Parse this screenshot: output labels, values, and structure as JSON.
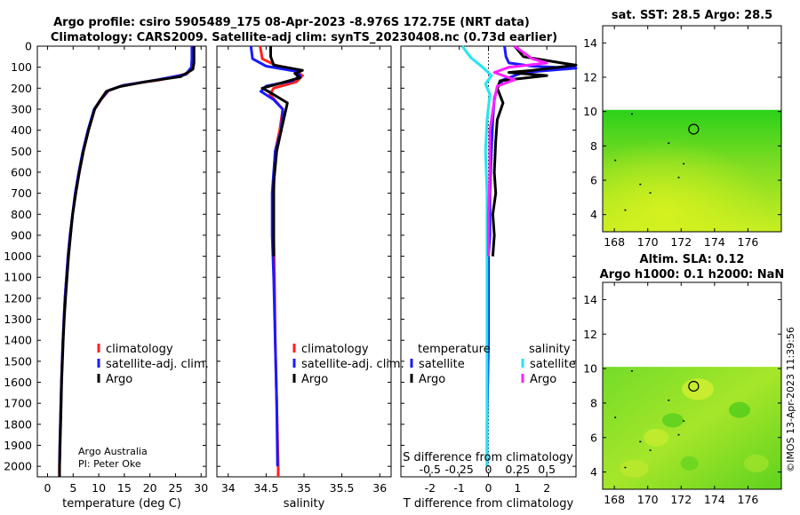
{
  "header": {
    "title_line1": "Argo profile: csiro 5905489_175 08-Apr-2023 -8.976S 172.75E (NRT data)",
    "title_line2": "Climatology: CARS2009. Satellite-adj clim: synTS_20230408.nc (0.73d earlier)"
  },
  "credit": {
    "line1": "Argo Australia",
    "line2": "PI: Peter Oke"
  },
  "stamp": "©IMOS 13-Apr-2023 11:39:56",
  "colors": {
    "climatology": "#ff2020",
    "satellite": "#1a1aff",
    "argo": "#000000",
    "sat_salinity": "#22e6f0",
    "argo_salinity": "#ff20ff"
  },
  "legend": {
    "climatology": "climatology",
    "satellite_adj": "satellite-adj. clim.",
    "argo": "Argo",
    "temperature": "temperature",
    "salinity": "salinity",
    "satellite": "satellite",
    "argo_short": "Argo",
    "s_diff": "S difference from climatology",
    "s_diff_ticks": [
      "-0.5",
      "-0.25",
      "0",
      "0.25",
      "0.5"
    ]
  },
  "chart_data": [
    {
      "type": "line",
      "id": "temperature",
      "xlabel": "temperature (deg C)",
      "xlim": [
        -2,
        31
      ],
      "ylim": [
        2050,
        0
      ],
      "x_ticks": [
        0,
        5,
        10,
        15,
        20,
        25,
        30
      ],
      "y_ticks": [
        0,
        100,
        200,
        300,
        400,
        500,
        600,
        700,
        800,
        900,
        1000,
        1100,
        1200,
        1300,
        1400,
        1500,
        1600,
        1700,
        1800,
        1900,
        2000
      ],
      "series": [
        {
          "name": "climatology",
          "points": [
            [
              28.4,
              0
            ],
            [
              28.4,
              60
            ],
            [
              28.3,
              100
            ],
            [
              27.3,
              130
            ],
            [
              22,
              160
            ],
            [
              15,
              185
            ],
            [
              12,
              210
            ],
            [
              10.6,
              250
            ],
            [
              9.2,
              300
            ],
            [
              8,
              400
            ],
            [
              7,
              500
            ],
            [
              6.2,
              600
            ],
            [
              5.5,
              700
            ],
            [
              4.9,
              800
            ],
            [
              4.4,
              900
            ],
            [
              4,
              1000
            ],
            [
              3.7,
              1100
            ],
            [
              3.4,
              1200
            ],
            [
              3.2,
              1300
            ],
            [
              3.0,
              1400
            ],
            [
              2.85,
              1500
            ],
            [
              2.7,
              1600
            ],
            [
              2.6,
              1700
            ],
            [
              2.5,
              1800
            ],
            [
              2.4,
              1900
            ],
            [
              2.3,
              2000
            ],
            [
              2.3,
              2050
            ]
          ]
        },
        {
          "name": "satellite-adj. clim.",
          "points": [
            [
              28.2,
              0
            ],
            [
              28.2,
              60
            ],
            [
              28.1,
              100
            ],
            [
              27,
              135
            ],
            [
              21,
              162
            ],
            [
              14.5,
              188
            ],
            [
              11.8,
              212
            ],
            [
              10.5,
              250
            ],
            [
              9.1,
              300
            ],
            [
              7.9,
              400
            ],
            [
              6.9,
              500
            ],
            [
              6.1,
              600
            ],
            [
              5.4,
              700
            ],
            [
              4.9,
              800
            ],
            [
              4.4,
              900
            ],
            [
              4,
              1000
            ],
            [
              3.7,
              1100
            ],
            [
              3.4,
              1200
            ],
            [
              3.2,
              1300
            ],
            [
              3.0,
              1400
            ],
            [
              2.85,
              1500
            ],
            [
              2.7,
              1600
            ],
            [
              2.6,
              1700
            ],
            [
              2.5,
              1800
            ],
            [
              2.4,
              1900
            ],
            [
              2.35,
              2000
            ]
          ]
        },
        {
          "name": "Argo",
          "points": [
            [
              28.6,
              0
            ],
            [
              28.6,
              80
            ],
            [
              28.4,
              110
            ],
            [
              26,
              145
            ],
            [
              19,
              170
            ],
            [
              14,
              193
            ],
            [
              11.5,
              215
            ],
            [
              10.5,
              250
            ],
            [
              9.2,
              300
            ],
            [
              8,
              400
            ],
            [
              7,
              500
            ],
            [
              6.2,
              600
            ],
            [
              5.5,
              700
            ],
            [
              4.9,
              800
            ],
            [
              4.5,
              900
            ],
            [
              4.1,
              1000
            ],
            [
              3.8,
              1100
            ],
            [
              3.5,
              1200
            ],
            [
              3.25,
              1300
            ],
            [
              3.05,
              1400
            ],
            [
              2.9,
              1500
            ],
            [
              2.75,
              1600
            ],
            [
              2.65,
              1700
            ],
            [
              2.55,
              1800
            ],
            [
              2.45,
              1900
            ],
            [
              2.35,
              2000
            ],
            [
              2.35,
              2050
            ]
          ]
        }
      ],
      "legend": [
        "climatology",
        "satellite-adj. clim.",
        "Argo"
      ]
    },
    {
      "type": "line",
      "id": "salinity",
      "xlabel": "salinity",
      "xlim": [
        33.85,
        36.15
      ],
      "ylim": [
        2050,
        0
      ],
      "x_ticks": [
        34,
        34.5,
        35,
        35.5,
        36
      ],
      "series": [
        {
          "name": "climatology",
          "points": [
            [
              34.42,
              0
            ],
            [
              34.45,
              60
            ],
            [
              34.62,
              90
            ],
            [
              34.85,
              110
            ],
            [
              34.98,
              140
            ],
            [
              34.9,
              170
            ],
            [
              34.6,
              200
            ],
            [
              34.55,
              230
            ],
            [
              34.72,
              300
            ],
            [
              34.68,
              400
            ],
            [
              34.62,
              500
            ],
            [
              34.6,
              700
            ],
            [
              34.6,
              900
            ],
            [
              34.61,
              1100
            ],
            [
              34.62,
              1400
            ],
            [
              34.64,
              1700
            ],
            [
              34.66,
              2000
            ],
            [
              34.66,
              2050
            ]
          ]
        },
        {
          "name": "satellite-adj. clim.",
          "points": [
            [
              34.3,
              0
            ],
            [
              34.32,
              60
            ],
            [
              34.5,
              95
            ],
            [
              34.9,
              120
            ],
            [
              34.95,
              140
            ],
            [
              34.85,
              165
            ],
            [
              34.5,
              190
            ],
            [
              34.43,
              215
            ],
            [
              34.6,
              255
            ],
            [
              34.72,
              300
            ],
            [
              34.7,
              400
            ],
            [
              34.62,
              500
            ],
            [
              34.58,
              700
            ],
            [
              34.58,
              900
            ],
            [
              34.6,
              1100
            ],
            [
              34.62,
              1400
            ],
            [
              34.64,
              1700
            ],
            [
              34.65,
              2000
            ]
          ]
        },
        {
          "name": "Argo",
          "points": [
            [
              34.56,
              0
            ],
            [
              34.56,
              50
            ],
            [
              34.6,
              90
            ],
            [
              34.98,
              115
            ],
            [
              34.88,
              130
            ],
            [
              34.95,
              150
            ],
            [
              34.7,
              175
            ],
            [
              34.45,
              200
            ],
            [
              34.55,
              220
            ],
            [
              34.78,
              270
            ],
            [
              34.75,
              320
            ],
            [
              34.7,
              400
            ],
            [
              34.64,
              500
            ],
            [
              34.6,
              650
            ],
            [
              34.6,
              800
            ],
            [
              34.6,
              1000
            ]
          ]
        }
      ],
      "legend": [
        "climatology",
        "satellite-adj. clim.",
        "Argo"
      ]
    },
    {
      "type": "line",
      "id": "difference",
      "xlabel": "T difference from climatology",
      "xlim": [
        -3,
        3
      ],
      "ylim": [
        2050,
        0
      ],
      "x_ticks": [
        -2,
        -1,
        0,
        1,
        2
      ],
      "s_scale_note": "S difference axis: -0.5..0.5 maps to x -2..2",
      "series": [
        {
          "name": "temperature satellite",
          "points": [
            [
              0.55,
              0
            ],
            [
              0.6,
              50
            ],
            [
              0.7,
              80
            ],
            [
              1.5,
              95
            ],
            [
              3,
              105
            ],
            [
              1.2,
              125
            ],
            [
              0.5,
              160
            ],
            [
              0.3,
              200
            ],
            [
              0.2,
              250
            ],
            [
              0.15,
              350
            ],
            [
              0.1,
              500
            ],
            [
              0.05,
              700
            ],
            [
              0.05,
              900
            ],
            [
              0.0,
              1000
            ],
            [
              0.0,
              1400
            ],
            [
              -0.05,
              1800
            ],
            [
              -0.05,
              2000
            ]
          ]
        },
        {
          "name": "temperature Argo",
          "points": [
            [
              0.9,
              0
            ],
            [
              1.2,
              50
            ],
            [
              2.5,
              80
            ],
            [
              3,
              90
            ],
            [
              2.4,
              100
            ],
            [
              1.5,
              115
            ],
            [
              0.7,
              125
            ],
            [
              2,
              140
            ],
            [
              0.4,
              165
            ],
            [
              0.3,
              200
            ],
            [
              0.5,
              270
            ],
            [
              0.3,
              350
            ],
            [
              0.25,
              450
            ],
            [
              0.2,
              600
            ],
            [
              0.25,
              700
            ],
            [
              0.15,
              800
            ],
            [
              0.2,
              900
            ],
            [
              0.15,
              1000
            ]
          ]
        },
        {
          "name": "salinity satellite",
          "points": [
            [
              -0.9,
              0
            ],
            [
              -0.6,
              55
            ],
            [
              -0.2,
              100
            ],
            [
              0.1,
              140
            ],
            [
              -0.1,
              180
            ],
            [
              0.05,
              230
            ],
            [
              -0.05,
              350
            ],
            [
              -0.1,
              500
            ],
            [
              -0.05,
              700
            ],
            [
              -0.05,
              1000
            ],
            [
              -0.05,
              1300
            ],
            [
              -0.05,
              1700
            ],
            [
              -0.05,
              2000
            ]
          ]
        },
        {
          "name": "salinity Argo",
          "points": [
            [
              0.9,
              0
            ],
            [
              1.5,
              60
            ],
            [
              2,
              80
            ],
            [
              0.7,
              100
            ],
            [
              0.2,
              125
            ],
            [
              0.9,
              160
            ],
            [
              0.3,
              190
            ],
            [
              0.2,
              260
            ],
            [
              0.05,
              400
            ],
            [
              0.05,
              600
            ],
            [
              0.0,
              800
            ],
            [
              0.0,
              1000
            ]
          ]
        }
      ],
      "legend_temperature": [
        "satellite",
        "Argo"
      ],
      "legend_salinity": [
        "satellite",
        "Argo"
      ]
    },
    {
      "type": "heatmap",
      "id": "sst_map",
      "title": "sat. SST: 28.5 Argo: 28.5",
      "xlim": [
        167.3,
        178
      ],
      "ylim": [
        3,
        15
      ],
      "x_ticks": [
        168,
        170,
        172,
        174,
        176
      ],
      "y_ticks": [
        4,
        6,
        8,
        10,
        12,
        14
      ],
      "data_extent": {
        "lon": [
          167.3,
          178
        ],
        "lat": [
          3,
          10.1
        ]
      },
      "argo_location": [
        172.75,
        8.976
      ]
    },
    {
      "type": "heatmap",
      "id": "sla_map",
      "title_line1": "Altim. SLA: 0.12",
      "title_line2": "Argo h1000: 0.1 h2000: NaN",
      "xlim": [
        167.3,
        178
      ],
      "ylim": [
        3,
        15
      ],
      "x_ticks": [
        168,
        170,
        172,
        174,
        176
      ],
      "y_ticks": [
        4,
        6,
        8,
        10,
        12,
        14
      ],
      "data_extent": {
        "lon": [
          167.3,
          178
        ],
        "lat": [
          3,
          10.1
        ]
      },
      "argo_location": [
        172.75,
        8.976
      ]
    }
  ]
}
